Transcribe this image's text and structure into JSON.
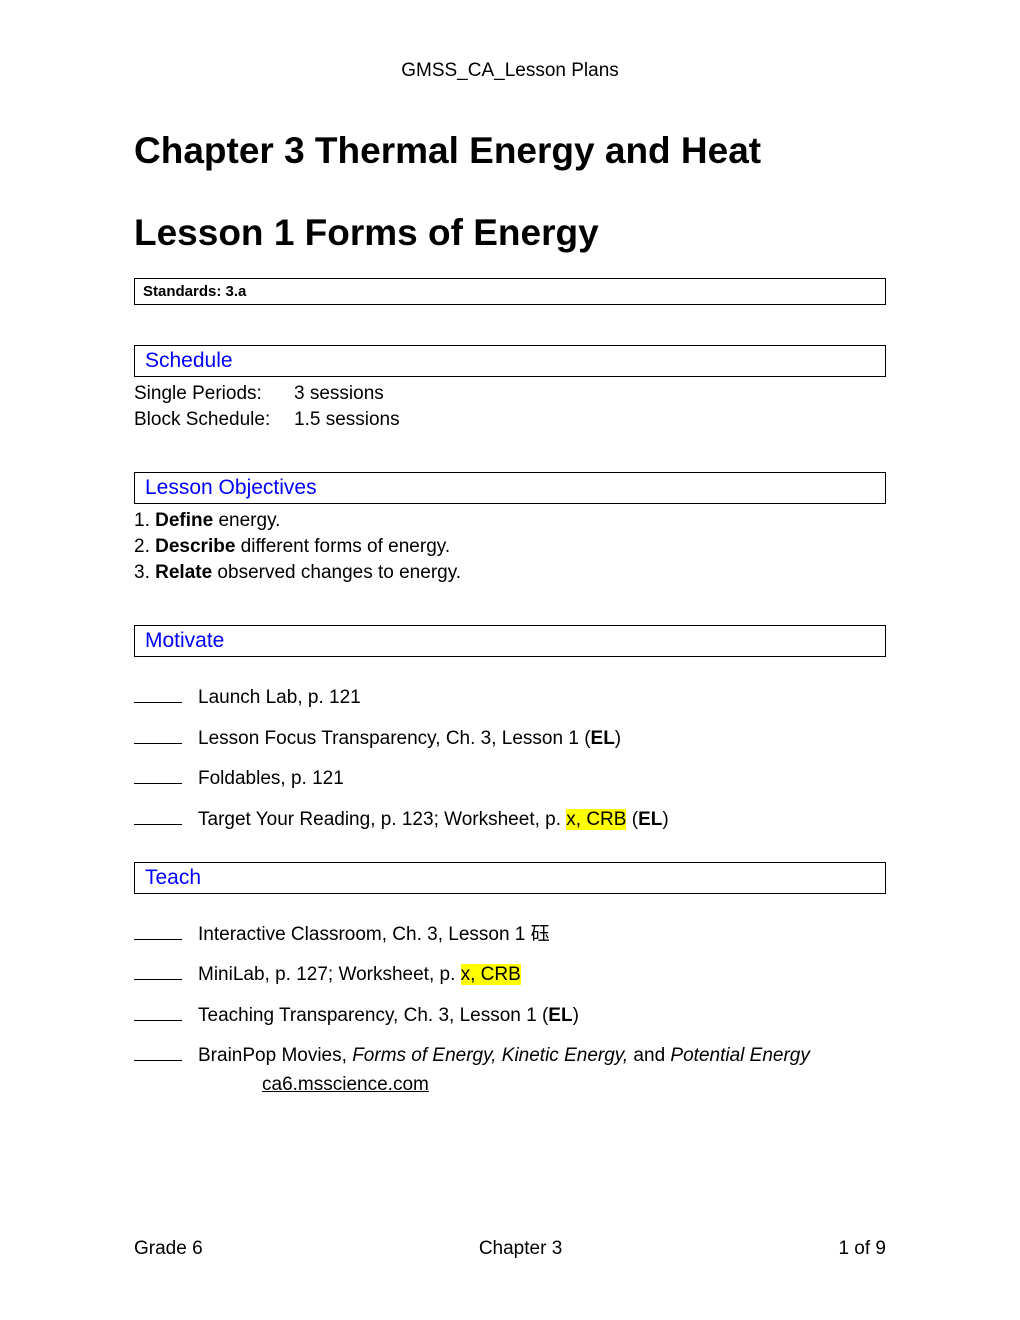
{
  "header": "GMSS_CA_Lesson Plans",
  "chapter_title": "Chapter 3  Thermal Energy and Heat",
  "lesson_title": "Lesson 1   Forms of Energy",
  "standards": "Standards: 3.a",
  "schedule": {
    "heading": "Schedule",
    "single_label": "Single Periods:",
    "single_value": "3 sessions",
    "block_label": "Block Schedule:",
    "block_value": "1.5 sessions"
  },
  "objectives": {
    "heading": "Lesson Objectives",
    "item1_num": "1. ",
    "item1_verb": "Define",
    "item1_rest": " energy.",
    "item2_num": "2. ",
    "item2_verb": "Describe",
    "item2_rest": " different forms of energy.",
    "item3_num": "3. ",
    "item3_verb": "Relate",
    "item3_rest": " observed changes to energy."
  },
  "motivate": {
    "heading": "Motivate",
    "item1": "Launch Lab, p. 121",
    "item2_pre": "Lesson Focus Transparency, Ch. 3, Lesson 1 (",
    "item2_el": "EL",
    "item2_post": ")",
    "item3": "Foldables, p. 121",
    "item4_pre": "Target Your Reading, p. 123; Worksheet, p. ",
    "item4_hl": "x, CRB",
    "item4_mid": " (",
    "item4_el": "EL",
    "item4_post": ")"
  },
  "teach": {
    "heading": "Teach",
    "item1": "Interactive Classroom, Ch. 3, Lesson 1 砡",
    "item2_pre": "MiniLab, p. 127; Worksheet, p. ",
    "item2_hl": "x, CRB",
    "item3_pre": "Teaching Transparency, Ch. 3, Lesson 1 (",
    "item3_el": "EL",
    "item3_post": ")",
    "item4_pre": "BrainPop Movies, ",
    "item4_italic1": "Forms of Energy,  Kinetic Energy,",
    "item4_mid": " and ",
    "item4_italic2": "Potential Energy",
    "item4_link": " ca6.msscience.com "
  },
  "footer": {
    "left": "Grade 6",
    "center": "Chapter 3",
    "right": "1 of 9"
  }
}
